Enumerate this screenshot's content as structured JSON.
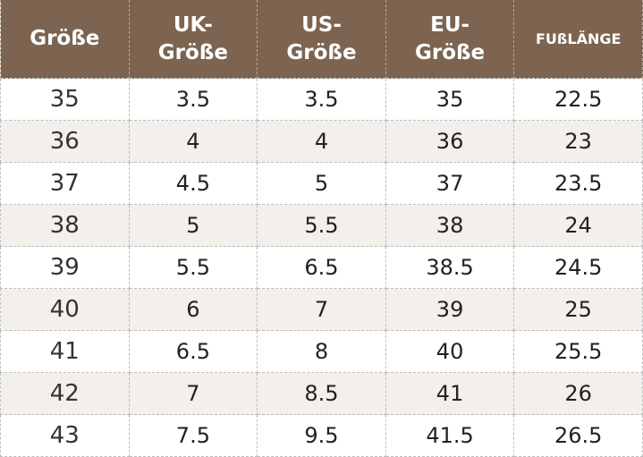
{
  "table": {
    "header": [
      "Größe",
      "UK-Größe",
      "US-Größe",
      "EU-Größe",
      "FUßLÄNGE"
    ],
    "rows": [
      [
        "35",
        "3.5",
        "3.5",
        "35",
        "22.5"
      ],
      [
        "36",
        "4",
        "4",
        "36",
        "23"
      ],
      [
        "37",
        "4.5",
        "5",
        "37",
        "23.5"
      ],
      [
        "38",
        "5",
        "5.5",
        "38",
        "24"
      ],
      [
        "39",
        "5.5",
        "6.5",
        "38.5",
        "24.5"
      ],
      [
        "40",
        "6",
        "7",
        "39",
        "25"
      ],
      [
        "41",
        "6.5",
        "8",
        "40",
        "25.5"
      ],
      [
        "42",
        "7",
        "8.5",
        "41",
        "26"
      ],
      [
        "43",
        "7.5",
        "9.5",
        "41.5",
        "26.5"
      ]
    ]
  }
}
